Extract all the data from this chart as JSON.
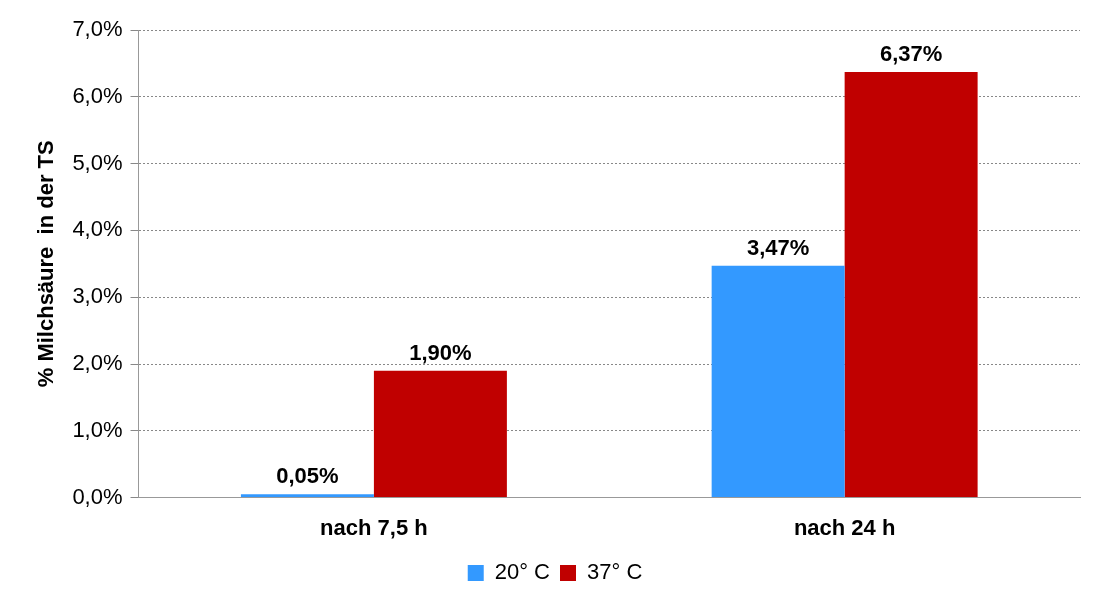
{
  "chart_data": {
    "type": "bar",
    "ylabel": "% Milchsäure  in der TS",
    "categories": [
      "nach 7,5 h",
      "nach 24 h"
    ],
    "series": [
      {
        "name": "20° C",
        "color": "#3399ff",
        "values": [
          0.05,
          3.47
        ],
        "value_labels": [
          "0,05%",
          "3,47%"
        ]
      },
      {
        "name": "37° C",
        "color": "#c00000",
        "values": [
          1.9,
          6.37
        ],
        "value_labels": [
          "1,90%",
          "6,37%"
        ]
      }
    ],
    "ylim": [
      0,
      7
    ],
    "yticks": [
      {
        "value": 0,
        "label": "0,0%"
      },
      {
        "value": 1,
        "label": "1,0%"
      },
      {
        "value": 2,
        "label": "2,0%"
      },
      {
        "value": 3,
        "label": "3,0%"
      },
      {
        "value": 4,
        "label": "4,0%"
      },
      {
        "value": 5,
        "label": "5,0%"
      },
      {
        "value": 6,
        "label": "6,0%"
      },
      {
        "value": 7,
        "label": "7,0%"
      }
    ],
    "grid": "y",
    "legend": "bottom"
  }
}
